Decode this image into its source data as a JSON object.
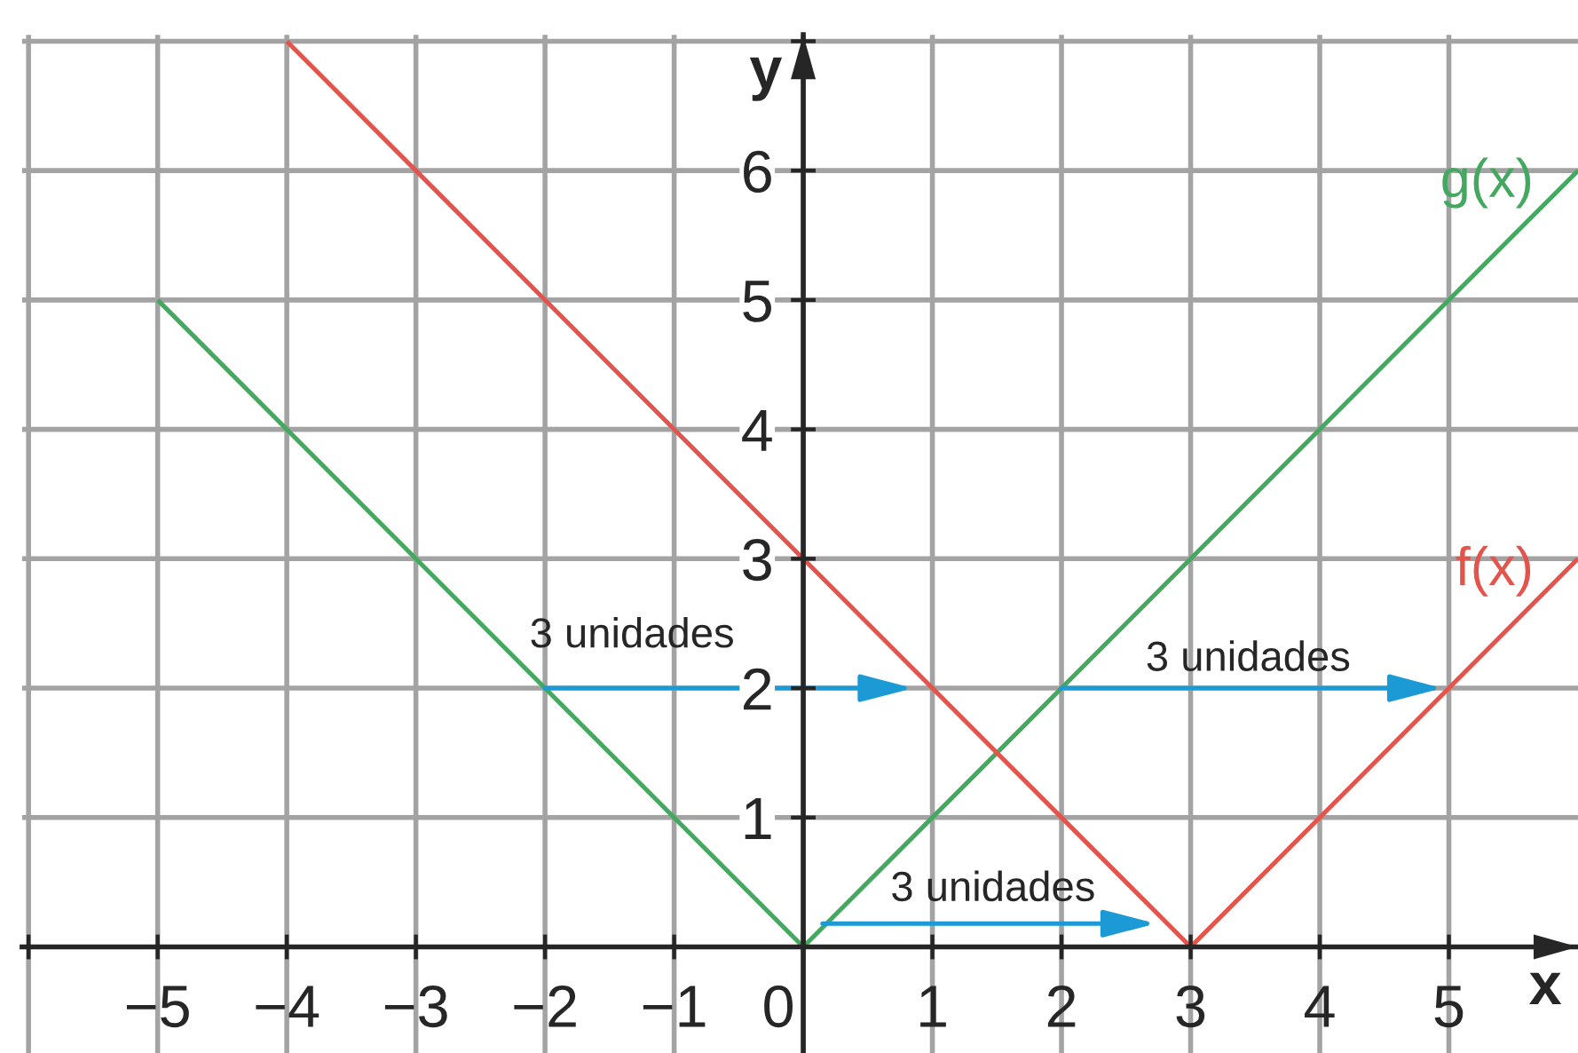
{
  "chart_data": {
    "type": "line",
    "xlabel": "x",
    "ylabel": "y",
    "xlim": [
      -6.05,
      6
    ],
    "ylim": [
      -0.82,
      7.05
    ],
    "xticks": [
      {
        "value": -6,
        "label": null
      },
      {
        "value": -5,
        "label": "−5"
      },
      {
        "value": -4,
        "label": "−4"
      },
      {
        "value": -3,
        "label": "−3"
      },
      {
        "value": -2,
        "label": "−2"
      },
      {
        "value": -1,
        "label": "−1"
      },
      0,
      1,
      2,
      3,
      4,
      5
    ],
    "yticks": [
      1,
      2,
      3,
      4,
      5,
      6,
      {
        "value": 7,
        "label": null
      }
    ],
    "grid": true,
    "series": [
      {
        "name": "g(x)",
        "color": "#45a860",
        "x": [
          -5,
          0,
          6
        ],
        "values": [
          5,
          0,
          6
        ]
      },
      {
        "name": "f(x)",
        "color": "#e3544c",
        "x": [
          -4,
          3,
          6
        ],
        "values": [
          7,
          0,
          3
        ]
      }
    ],
    "annotations": [
      "3 unidades",
      "3 unidades",
      "3 unidades"
    ]
  }
}
